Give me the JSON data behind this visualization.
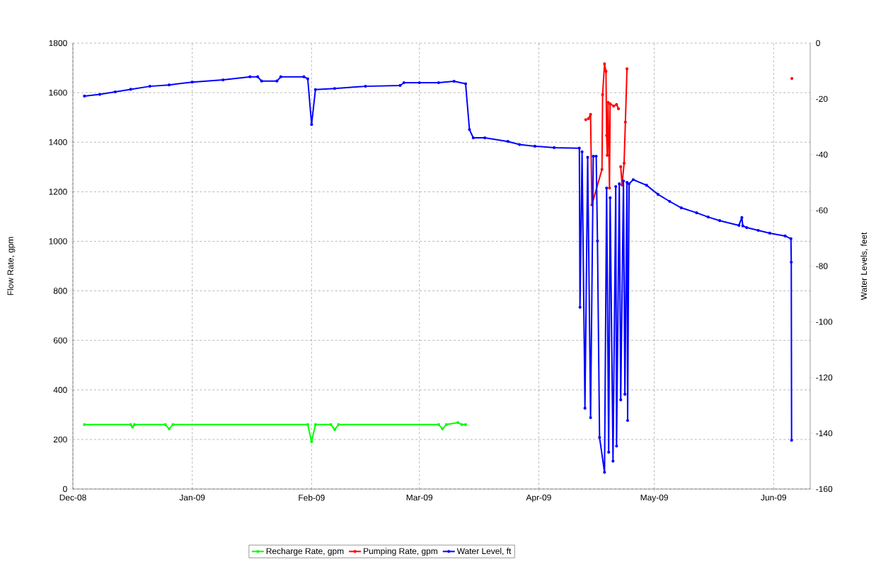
{
  "chart_data": {
    "type": "line",
    "xlabel": null,
    "ylabel": "Flow Rate, gpm",
    "y2label": "Water Levels, feet",
    "xlim": [
      "2008-12-01",
      "2009-06-10T12:00"
    ],
    "xticks": [
      {
        "value": "2008-12-01",
        "label": "Dec-08"
      },
      {
        "value": "2009-01-01",
        "label": "Jan-09"
      },
      {
        "value": "2009-02-01",
        "label": "Feb-09"
      },
      {
        "value": "2009-03-01",
        "label": "Mar-09"
      },
      {
        "value": "2009-04-01",
        "label": "Apr-09"
      },
      {
        "value": "2009-05-01",
        "label": "May-09"
      },
      {
        "value": "2009-06-01",
        "label": "Jun-09"
      }
    ],
    "ylim": [
      0,
      1800
    ],
    "yticks": [
      0,
      200,
      400,
      600,
      800,
      1000,
      1200,
      1400,
      1600,
      1800
    ],
    "y2lim": [
      -160,
      0
    ],
    "y2ticks": [
      -160,
      -140,
      -120,
      -100,
      -80,
      -60,
      -40,
      -20,
      0
    ],
    "grid": true,
    "legend": "bottom",
    "marker": "circle",
    "line_style": "solid",
    "series": [
      {
        "name": "Recharge Rate, gpm",
        "color": "#00ff00",
        "x": [
          "2008-12-04",
          "2008-12-16",
          "2008-12-16T12:00",
          "2008-12-17",
          "2008-12-25",
          "2008-12-26",
          "2008-12-27",
          "2009-01-31",
          "2009-02-01",
          "2009-02-02",
          "2009-02-06",
          "2009-02-07",
          "2009-02-08",
          "2009-03-06",
          "2009-03-07",
          "2009-03-08",
          "2009-03-11",
          "2009-03-12",
          "2009-03-13"
        ],
        "values": [
          260,
          260,
          250,
          260,
          260,
          243,
          260,
          260,
          191,
          260,
          260,
          240,
          260,
          260,
          243,
          260,
          268,
          260,
          260
        ]
      },
      {
        "name": "Pumping Rate, gpm",
        "color": "#ff0000",
        "x": [
          "2009-04-13T05:00",
          "2009-04-13T12:00",
          "2009-04-13T22:00",
          "2009-04-14T11:00",
          "2009-04-14T19:00",
          "2009-04-17T10:00",
          "2009-04-17T14:00",
          "2009-04-18T02:00",
          "2009-04-18T11:00",
          "2009-04-18T15:00",
          "2009-04-18T19:00",
          "2009-04-19T00:00",
          "2009-04-19T09:00",
          "2009-04-19T13:00",
          "2009-04-20T11:00",
          "2009-04-21T05:00",
          "2009-04-21T17:00",
          "2009-04-21T22:00",
          "2009-04-22T07:00",
          "2009-04-22T15:00",
          "2009-04-23T04:00",
          "2009-04-23T12:00",
          "2009-04-23T22:00",
          "2009-04-24T01:00",
          "2009-04-25T00:00",
          "2009-06-05T18:00"
        ],
        "values": [
          1491,
          null,
          1495,
          1512,
          1147,
          1290,
          1592,
          1716,
          1686,
          1427,
          1347,
          1561,
          1215,
          1555,
          1546,
          1552,
          1535,
          null,
          1301,
          1227,
          1315,
          1481,
          1696,
          null,
          null,
          1657
        ]
      },
      {
        "name": "Water Level, ft",
        "color": "#0000ff",
        "axis": "y2",
        "x": [
          "2008-12-04",
          "2008-12-08",
          "2008-12-12",
          "2008-12-16",
          "2008-12-21",
          "2008-12-26",
          "2009-01-01",
          "2009-01-09",
          "2009-01-16",
          "2009-01-18",
          "2009-01-19",
          "2009-01-23",
          "2009-01-24",
          "2009-01-30",
          "2009-01-31",
          "2009-02-01",
          "2009-02-02",
          "2009-02-07",
          "2009-02-15",
          "2009-02-24",
          "2009-02-25",
          "2009-03-01",
          "2009-03-06",
          "2009-03-10",
          "2009-03-13",
          "2009-03-14",
          "2009-03-15",
          "2009-03-18",
          "2009-03-24",
          "2009-03-27",
          "2009-03-31",
          "2009-04-05",
          "2009-04-11T13:00",
          "2009-04-11T17:00",
          "2009-04-12T06:00",
          "2009-04-13T00:00",
          "2009-04-13T17:00",
          "2009-04-14T11:00",
          "2009-04-15T04:00",
          "2009-04-15T22:00",
          "2009-04-16T06:00",
          "2009-04-16T19:00",
          "2009-04-18T02:00",
          "2009-04-18T15:00",
          "2009-04-19T04:00",
          "2009-04-19T13:00",
          "2009-04-20T07:00",
          "2009-04-21T00:00",
          "2009-04-21T05:00",
          "2009-04-21T22:00",
          "2009-04-22T07:00",
          "2009-04-23T00:00",
          "2009-04-23T09:00",
          "2009-04-23T22:00",
          "2009-04-24T02:00",
          "2009-04-24T11:00",
          "2009-04-25T13:00",
          "2009-04-29",
          "2009-05-02",
          "2009-05-05",
          "2009-05-08",
          "2009-05-12",
          "2009-05-15",
          "2009-05-18",
          "2009-05-23",
          "2009-05-23T18:00",
          "2009-05-24",
          "2009-05-25",
          "2009-05-28",
          "2009-05-31",
          "2009-06-04",
          "2009-06-05T12:00",
          "2009-06-05T14:00",
          "2009-06-05T16:00"
        ],
        "values": [
          -19.0,
          -18.4,
          -17.5,
          -16.6,
          -15.5,
          -15.0,
          -14.0,
          -13.2,
          -12.1,
          -12.1,
          -13.6,
          -13.6,
          -12.1,
          -12.1,
          -12.8,
          -29.2,
          -16.7,
          -16.3,
          -15.5,
          -15.2,
          -14.2,
          -14.2,
          -14.2,
          -13.7,
          -14.6,
          -31.0,
          -34.0,
          -34.0,
          -35.3,
          -36.4,
          -37.0,
          -37.5,
          -37.7,
          -94.8,
          -39.0,
          -131.0,
          -41.0,
          -134.4,
          -40.6,
          -40.6,
          -71.0,
          -141.5,
          -154.0,
          -52.0,
          -146.8,
          -55.5,
          -150.0,
          -51.5,
          -144.6,
          -50.5,
          -128.0,
          -49.5,
          -126.0,
          -50.0,
          -135.4,
          -50.5,
          -49.0,
          -51.0,
          -54.3,
          -56.8,
          -59.1,
          -60.9,
          -62.4,
          -63.7,
          -65.4,
          -62.6,
          -65.6,
          -66.2,
          -67.2,
          -68.2,
          -69.2,
          -70.2,
          -78.6,
          -142.5
        ]
      }
    ]
  }
}
